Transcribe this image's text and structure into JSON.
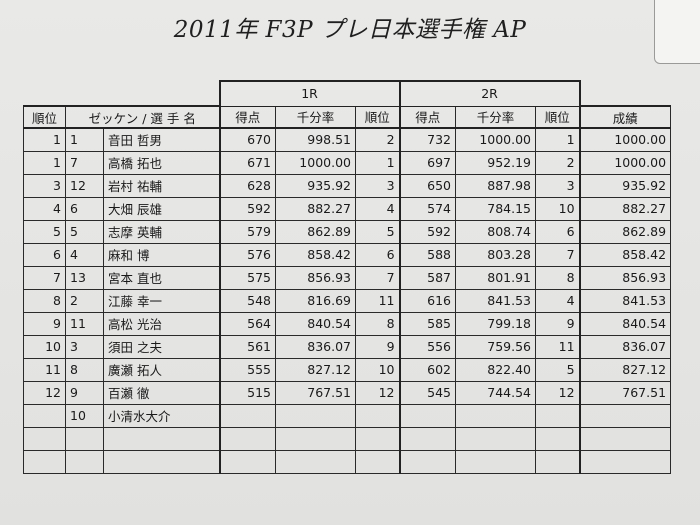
{
  "title": "2011年 F3P プレ日本選手権 AP",
  "groups": {
    "r1": "1R",
    "r2": "2R"
  },
  "headers": {
    "rank": "順位",
    "entrant": "ゼッケン / 選 手 名",
    "r1_score": "得点",
    "r1_permil": "千分率",
    "r1_rank": "順位",
    "r2_score": "得点",
    "r2_permil": "千分率",
    "r2_rank": "順位",
    "result": "成績"
  },
  "rows": [
    {
      "rank": "1",
      "bib": "1",
      "name": "音田 哲男",
      "s1": "670",
      "p1": "998.51",
      "r1": "2",
      "s2": "732",
      "p2": "1000.00",
      "r2": "1",
      "res": "1000.00"
    },
    {
      "rank": "1",
      "bib": "7",
      "name": "高橋 拓也",
      "s1": "671",
      "p1": "1000.00",
      "r1": "1",
      "s2": "697",
      "p2": "952.19",
      "r2": "2",
      "res": "1000.00"
    },
    {
      "rank": "3",
      "bib": "12",
      "name": "岩村 祐輔",
      "s1": "628",
      "p1": "935.92",
      "r1": "3",
      "s2": "650",
      "p2": "887.98",
      "r2": "3",
      "res": "935.92"
    },
    {
      "rank": "4",
      "bib": "6",
      "name": "大畑 辰雄",
      "s1": "592",
      "p1": "882.27",
      "r1": "4",
      "s2": "574",
      "p2": "784.15",
      "r2": "10",
      "res": "882.27"
    },
    {
      "rank": "5",
      "bib": "5",
      "name": "志摩 英輔",
      "s1": "579",
      "p1": "862.89",
      "r1": "5",
      "s2": "592",
      "p2": "808.74",
      "r2": "6",
      "res": "862.89"
    },
    {
      "rank": "6",
      "bib": "4",
      "name": "麻和 博",
      "s1": "576",
      "p1": "858.42",
      "r1": "6",
      "s2": "588",
      "p2": "803.28",
      "r2": "7",
      "res": "858.42"
    },
    {
      "rank": "7",
      "bib": "13",
      "name": "宮本 直也",
      "s1": "575",
      "p1": "856.93",
      "r1": "7",
      "s2": "587",
      "p2": "801.91",
      "r2": "8",
      "res": "856.93"
    },
    {
      "rank": "8",
      "bib": "2",
      "name": "江藤 幸一",
      "s1": "548",
      "p1": "816.69",
      "r1": "11",
      "s2": "616",
      "p2": "841.53",
      "r2": "4",
      "res": "841.53"
    },
    {
      "rank": "9",
      "bib": "11",
      "name": "高松 光治",
      "s1": "564",
      "p1": "840.54",
      "r1": "8",
      "s2": "585",
      "p2": "799.18",
      "r2": "9",
      "res": "840.54"
    },
    {
      "rank": "10",
      "bib": "3",
      "name": "須田 之夫",
      "s1": "561",
      "p1": "836.07",
      "r1": "9",
      "s2": "556",
      "p2": "759.56",
      "r2": "11",
      "res": "836.07"
    },
    {
      "rank": "11",
      "bib": "8",
      "name": "廣瀬 拓人",
      "s1": "555",
      "p1": "827.12",
      "r1": "10",
      "s2": "602",
      "p2": "822.40",
      "r2": "5",
      "res": "827.12"
    },
    {
      "rank": "12",
      "bib": "9",
      "name": "百瀬 徹",
      "s1": "515",
      "p1": "767.51",
      "r1": "12",
      "s2": "545",
      "p2": "744.54",
      "r2": "12",
      "res": "767.51"
    },
    {
      "rank": "",
      "bib": "10",
      "name": "小清水大介",
      "s1": "",
      "p1": "",
      "r1": "",
      "s2": "",
      "p2": "",
      "r2": "",
      "res": ""
    },
    {
      "rank": "",
      "bib": "",
      "name": "",
      "s1": "",
      "p1": "",
      "r1": "",
      "s2": "",
      "p2": "",
      "r2": "",
      "res": ""
    },
    {
      "rank": "",
      "bib": "",
      "name": "",
      "s1": "",
      "p1": "",
      "r1": "",
      "s2": "",
      "p2": "",
      "r2": "",
      "res": ""
    }
  ]
}
